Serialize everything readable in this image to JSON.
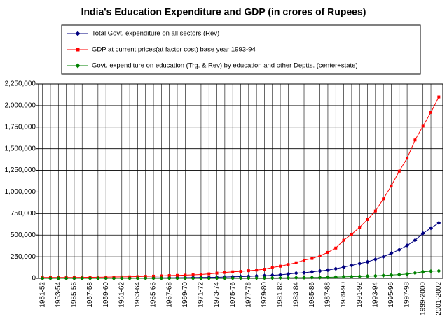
{
  "chart_data": {
    "type": "line",
    "title": "India's Education Expenditure and GDP (in crores of Rupees)",
    "categories": [
      "1951-52",
      null,
      "1953-54",
      null,
      "1955-56",
      null,
      "1957-58",
      null,
      "1959-60",
      null,
      "1961-62",
      null,
      "1963-64",
      null,
      "1965-66",
      null,
      "1967-68",
      null,
      "1969-70",
      null,
      "1971-72",
      null,
      "1973-74",
      null,
      "1975-76",
      null,
      "1977-78",
      null,
      "1979-80",
      null,
      "1981-82",
      null,
      "1983-84",
      null,
      "1985-86",
      null,
      "1987-88",
      null,
      "1989-90",
      null,
      "1991-92",
      null,
      "1993-94",
      null,
      "1995-96",
      null,
      "1997-98",
      null,
      "1999-2000",
      null,
      "2001-2002"
    ],
    "series": [
      {
        "name": "Total Govt. expenditure on all sectors (Rev)",
        "color": "#000080",
        "marker": "diamond",
        "values": [
          1000,
          1100,
          1200,
          1300,
          1400,
          1600,
          1800,
          2000,
          2300,
          2600,
          3000,
          3400,
          4000,
          4500,
          5000,
          5600,
          6200,
          7000,
          8000,
          9000,
          10000,
          11000,
          12000,
          15000,
          18000,
          20000,
          23000,
          27000,
          30000,
          35000,
          40000,
          50000,
          60000,
          65000,
          75000,
          85000,
          95000,
          110000,
          130000,
          150000,
          170000,
          190000,
          220000,
          250000,
          290000,
          330000,
          380000,
          440000,
          520000,
          580000,
          640000
        ]
      },
      {
        "name": "GDP at current prices(at factor cost) base year 1993-94",
        "color": "#ff0000",
        "marker": "square",
        "values": [
          10000,
          10000,
          10000,
          10500,
          10000,
          11000,
          12000,
          13000,
          14500,
          16000,
          17000,
          18000,
          20000,
          23000,
          25000,
          28000,
          32000,
          34000,
          37000,
          40000,
          45000,
          52000,
          60000,
          68000,
          75000,
          80000,
          88000,
          95000,
          105000,
          125000,
          140000,
          160000,
          180000,
          210000,
          230000,
          260000,
          300000,
          350000,
          440000,
          510000,
          590000,
          680000,
          780000,
          920000,
          1070000,
          1240000,
          1390000,
          1600000,
          1760000,
          1920000,
          2100000
        ]
      },
      {
        "name": "Govt. expenditure on education (Trg. & Rev) by education and other Deptts. (center+state)",
        "color": "#008000",
        "marker": "diamond",
        "values": [
          100,
          120,
          140,
          160,
          180,
          200,
          230,
          260,
          300,
          340,
          380,
          430,
          500,
          570,
          650,
          730,
          820,
          920,
          1000,
          1100,
          1300,
          1500,
          1700,
          1900,
          2200,
          2600,
          3000,
          3500,
          4000,
          4500,
          5000,
          6000,
          7000,
          8000,
          9000,
          10000,
          12000,
          14000,
          17000,
          20000,
          22000,
          25000,
          28000,
          33000,
          38000,
          43000,
          50000,
          62000,
          75000,
          82000,
          85000
        ]
      }
    ],
    "ylim": [
      0,
      2250000
    ],
    "yticks": [
      0,
      {
        "value": 250000,
        "label": "250,000"
      },
      {
        "value": 500000,
        "label": "500,000"
      },
      {
        "value": 750000,
        "label": "750,000"
      },
      {
        "value": 1000000,
        "label": "1,000,000"
      },
      {
        "value": 1250000,
        "label": "1,250,000"
      },
      {
        "value": 1500000,
        "label": "1,500,000"
      },
      {
        "value": 1750000,
        "label": "1,750,000"
      },
      {
        "value": 2000000,
        "label": "2,000,000"
      },
      {
        "value": 2250000,
        "label": "2,250,000"
      }
    ],
    "grid": true
  }
}
